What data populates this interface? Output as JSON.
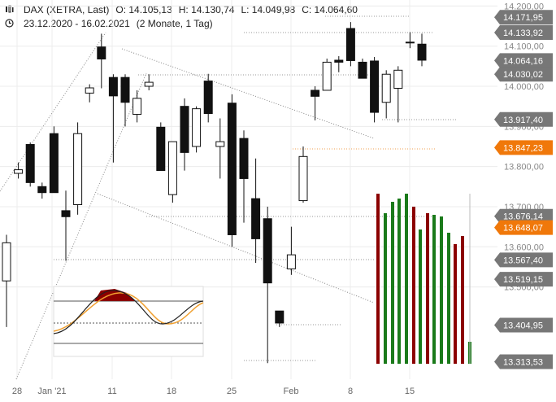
{
  "header": {
    "title": "DAX (XETRA, Last)",
    "open": "O: 14.105,13",
    "high": "H: 14.130,74",
    "low": "L: 14.049,98",
    "close": "C: 14.064,60",
    "range": "23.12.2020 - 16.02.2021",
    "period": "(2 Monate, 1 Tag)"
  },
  "chart_data": {
    "type": "candlestick",
    "title": "DAX (XETRA, Last)",
    "ylim": [
      13270,
      14215
    ],
    "y_axis_ticks": [
      "14.200,00",
      "14.100,00",
      "14.000,00",
      "13.900,00",
      "13.800,00",
      "13.700,00",
      "13.600,00",
      "13.500,00"
    ],
    "x_axis_ticks": [
      "28",
      "Jan '21",
      "11",
      "18",
      "25",
      "Feb",
      "8",
      "15"
    ],
    "price_labels": [
      {
        "text": "14.171,95",
        "value": 14171.95,
        "color": "#777777"
      },
      {
        "text": "14.133,92",
        "value": 14133.92,
        "color": "#777777"
      },
      {
        "text": "14.064,16",
        "value": 14064.16,
        "color": "#777777"
      },
      {
        "text": "14.030,02",
        "value": 14030.02,
        "color": "#777777"
      },
      {
        "text": "13.917,40",
        "value": 13917.4,
        "color": "#777777"
      },
      {
        "text": "13.847,23",
        "value": 13847.23,
        "color": "#f0780a"
      },
      {
        "text": "13.676,14",
        "value": 13676.14,
        "color": "#777777"
      },
      {
        "text": "13.648,07",
        "value": 13648.07,
        "color": "#f0780a"
      },
      {
        "text": "13.567,40",
        "value": 13567.4,
        "color": "#777777"
      },
      {
        "text": "13.519,15",
        "value": 13519.15,
        "color": "#777777"
      },
      {
        "text": "13.404,95",
        "value": 13404.95,
        "color": "#777777"
      },
      {
        "text": "13.313,53",
        "value": 13313.53,
        "color": "#777777"
      }
    ],
    "candles": [
      {
        "o": 13515,
        "h": 13630,
        "l": 13400,
        "c": 13610
      },
      {
        "o": 13783,
        "h": 13810,
        "l": 13770,
        "c": 13792
      },
      {
        "o": 13855,
        "h": 13860,
        "l": 13750,
        "c": 13760
      },
      {
        "o": 13750,
        "h": 13760,
        "l": 13720,
        "c": 13735
      },
      {
        "o": 13882,
        "h": 13900,
        "l": 13735,
        "c": 13735
      },
      {
        "o": 13690,
        "h": 13740,
        "l": 13565,
        "c": 13675
      },
      {
        "o": 13705,
        "h": 13910,
        "l": 13680,
        "c": 13882
      },
      {
        "o": 13983,
        "h": 14005,
        "l": 13960,
        "c": 13996
      },
      {
        "o": 14098,
        "h": 14131,
        "l": 13995,
        "c": 14068
      },
      {
        "o": 14022,
        "h": 14030,
        "l": 13810,
        "c": 13976
      },
      {
        "o": 14022,
        "h": 14030,
        "l": 13900,
        "c": 13960
      },
      {
        "o": 13930,
        "h": 13990,
        "l": 13910,
        "c": 13970
      },
      {
        "o": 14000,
        "h": 14030,
        "l": 13990,
        "c": 14010
      },
      {
        "o": 13898,
        "h": 13910,
        "l": 13790,
        "c": 13790
      },
      {
        "o": 13730,
        "h": 13860,
        "l": 13710,
        "c": 13862
      },
      {
        "o": 13950,
        "h": 13970,
        "l": 13790,
        "c": 13835
      },
      {
        "o": 13850,
        "h": 13950,
        "l": 13835,
        "c": 13944
      },
      {
        "o": 14013,
        "h": 14031,
        "l": 13910,
        "c": 13932
      },
      {
        "o": 13850,
        "h": 13920,
        "l": 13770,
        "c": 13862
      },
      {
        "o": 13958,
        "h": 13980,
        "l": 13600,
        "c": 13630
      },
      {
        "o": 13870,
        "h": 13890,
        "l": 13660,
        "c": 13770
      },
      {
        "o": 13720,
        "h": 13820,
        "l": 13560,
        "c": 13620
      },
      {
        "o": 13670,
        "h": 13700,
        "l": 13310,
        "c": 13510
      },
      {
        "o": 13440,
        "h": 13440,
        "l": 13400,
        "c": 13410
      },
      {
        "o": 13545,
        "h": 13650,
        "l": 13530,
        "c": 13580
      },
      {
        "o": 13715,
        "h": 13850,
        "l": 13710,
        "c": 13825
      },
      {
        "o": 13990,
        "h": 14000,
        "l": 13915,
        "c": 13975
      },
      {
        "o": 13990,
        "h": 14069,
        "l": 13995,
        "c": 14060
      },
      {
        "o": 14065,
        "h": 14075,
        "l": 14035,
        "c": 14060
      },
      {
        "o": 14144,
        "h": 14160,
        "l": 14050,
        "c": 14064
      },
      {
        "o": 14060,
        "h": 14069,
        "l": 14020,
        "c": 14020
      },
      {
        "o": 14063,
        "h": 14073,
        "l": 13910,
        "c": 13935
      },
      {
        "o": 13960,
        "h": 14040,
        "l": 13920,
        "c": 14030
      },
      {
        "o": 13995,
        "h": 14050,
        "l": 13910,
        "c": 14040
      },
      {
        "o": 14109,
        "h": 14135,
        "l": 14095,
        "c": 14110
      },
      {
        "o": 14105,
        "h": 14131,
        "l": 14050,
        "c": 14065
      }
    ],
    "grid": true
  }
}
